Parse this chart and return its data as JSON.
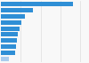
{
  "values": [
    73.0,
    32.0,
    24.0,
    21.0,
    19.0,
    17.5,
    16.5,
    15.5,
    14.0,
    8.0
  ],
  "bar_color": "#2f8fd6",
  "last_bar_color": "#aaccee",
  "background_color": "#f8f8f8",
  "grid_color": "#dddddd",
  "bar_height": 0.72,
  "xlim": [
    0,
    88
  ],
  "n_bars": 10
}
